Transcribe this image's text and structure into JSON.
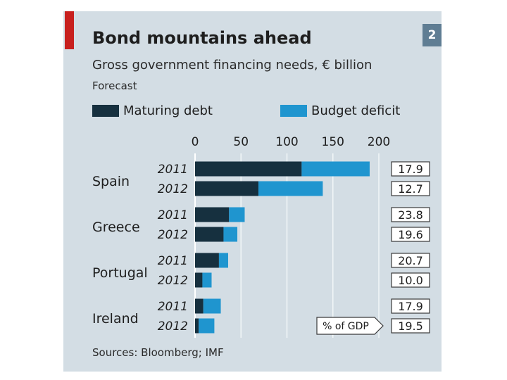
{
  "header": {
    "panel_number": "2",
    "title": "Bond mountains ahead",
    "subtitle": "Gross government financing needs, € billion",
    "note": "Forecast"
  },
  "legend": {
    "maturing_label": "Maturing debt",
    "deficit_label": "Budget deficit"
  },
  "colors": {
    "maturing": "#16303f",
    "deficit": "#1f95cf",
    "panel": "#d3dde4",
    "accent": "#c8201e"
  },
  "footer": {
    "source": "Sources: Bloomberg; IMF"
  },
  "chart_data": {
    "type": "bar",
    "orientation": "horizontal",
    "stacked": true,
    "title": "Bond mountains ahead",
    "subtitle": "Gross government financing needs, € billion",
    "note": "Forecast",
    "xlim": [
      0,
      200
    ],
    "xticks": [
      0,
      50,
      100,
      150,
      200
    ],
    "groups": [
      {
        "country": "Spain",
        "rows": [
          {
            "year": "2011",
            "maturing": 116,
            "deficit": 74,
            "gdp_pct": "17.9"
          },
          {
            "year": "2012",
            "maturing": 69,
            "deficit": 70,
            "gdp_pct": "12.7"
          }
        ]
      },
      {
        "country": "Greece",
        "rows": [
          {
            "year": "2011",
            "maturing": 37,
            "deficit": 17,
            "gdp_pct": "23.8"
          },
          {
            "year": "2012",
            "maturing": 31,
            "deficit": 15,
            "gdp_pct": "19.6"
          }
        ]
      },
      {
        "country": "Portugal",
        "rows": [
          {
            "year": "2011",
            "maturing": 26,
            "deficit": 10,
            "gdp_pct": "20.7"
          },
          {
            "year": "2012",
            "maturing": 8,
            "deficit": 10,
            "gdp_pct": "10.0"
          }
        ]
      },
      {
        "country": "Ireland",
        "rows": [
          {
            "year": "2011",
            "maturing": 9,
            "deficit": 19,
            "gdp_pct": "17.9"
          },
          {
            "year": "2012",
            "maturing": 4,
            "deficit": 17,
            "gdp_pct": "19.5"
          }
        ]
      }
    ],
    "gdp_label": "% of GDP",
    "series": [
      {
        "name": "Maturing debt",
        "key": "maturing"
      },
      {
        "name": "Budget deficit",
        "key": "deficit"
      }
    ]
  }
}
